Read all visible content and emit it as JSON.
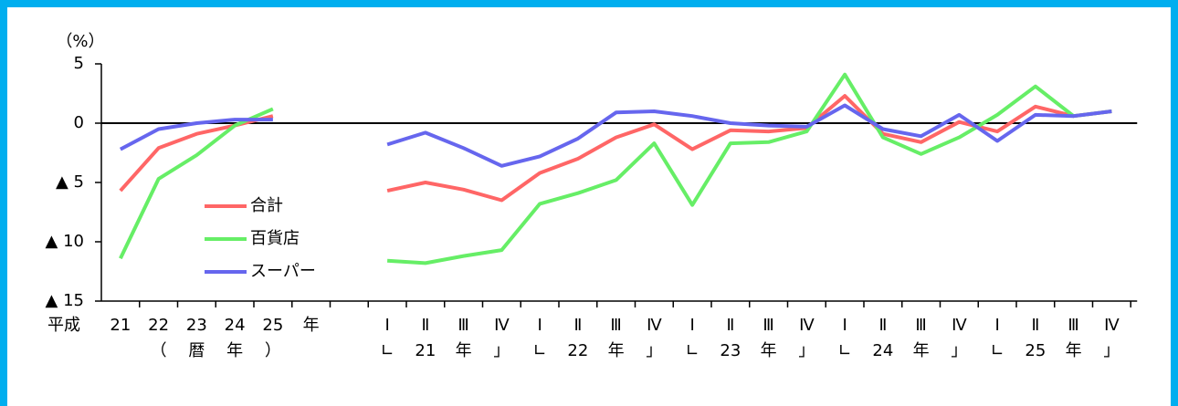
{
  "chart_data": {
    "type": "line",
    "y_label": "（%）",
    "x_label": "平成",
    "categories": [
      "21",
      "22",
      "23",
      "24",
      "25",
      "年",
      null,
      "Ⅰ",
      "Ⅱ",
      "Ⅲ",
      "Ⅳ",
      "Ⅰ",
      "Ⅱ",
      "Ⅲ",
      "Ⅳ",
      "Ⅰ",
      "Ⅱ",
      "Ⅲ",
      "Ⅳ",
      "Ⅰ",
      "Ⅱ",
      "Ⅲ",
      "Ⅳ",
      "Ⅰ",
      "Ⅱ",
      "Ⅲ",
      "Ⅳ"
    ],
    "sublabels": [
      null,
      "（",
      "暦",
      "年",
      "）",
      null,
      null,
      "∟",
      "21",
      "年",
      "」",
      "∟",
      "22",
      "年",
      "」",
      "∟",
      "23",
      "年",
      "」",
      "∟",
      "24",
      "年",
      "」",
      "∟",
      "25",
      "年",
      "」"
    ],
    "series": [
      {
        "name": "合計",
        "color": "#ff6666",
        "values": [
          -5.7,
          -2.1,
          -0.9,
          -0.2,
          0.6,
          null,
          null,
          -5.7,
          -5.0,
          -5.6,
          -6.5,
          -4.2,
          -3.0,
          -1.2,
          -0.1,
          -2.2,
          -0.6,
          -0.7,
          -0.4,
          2.3,
          -0.9,
          -1.6,
          0.1,
          -0.7,
          1.4,
          0.6,
          1.0
        ]
      },
      {
        "name": "百貨店",
        "color": "#66ee66",
        "values": [
          -11.4,
          -4.7,
          -2.7,
          -0.2,
          1.2,
          null,
          null,
          -11.6,
          -11.8,
          -11.2,
          -10.7,
          -6.8,
          -5.9,
          -4.8,
          -1.7,
          -6.9,
          -1.7,
          -1.6,
          -0.7,
          4.1,
          -1.2,
          -2.6,
          -1.2,
          0.7,
          3.1,
          0.6,
          1.0
        ]
      },
      {
        "name": "スーパー",
        "color": "#6666ee",
        "values": [
          -2.2,
          -0.5,
          0.0,
          0.3,
          0.3,
          null,
          null,
          -1.8,
          -0.8,
          -2.1,
          -3.6,
          -2.8,
          -1.3,
          0.9,
          1.0,
          0.6,
          0.0,
          -0.2,
          -0.3,
          1.5,
          -0.5,
          -1.1,
          0.7,
          -1.5,
          0.7,
          0.6,
          1.0
        ]
      }
    ],
    "ylim": [
      -15,
      5
    ],
    "yticks": [
      5,
      0,
      {
        "value": -5,
        "label": "▲ 5"
      },
      {
        "value": -10,
        "label": "▲ 10"
      },
      {
        "value": -15,
        "label": "▲ 15"
      }
    ]
  }
}
